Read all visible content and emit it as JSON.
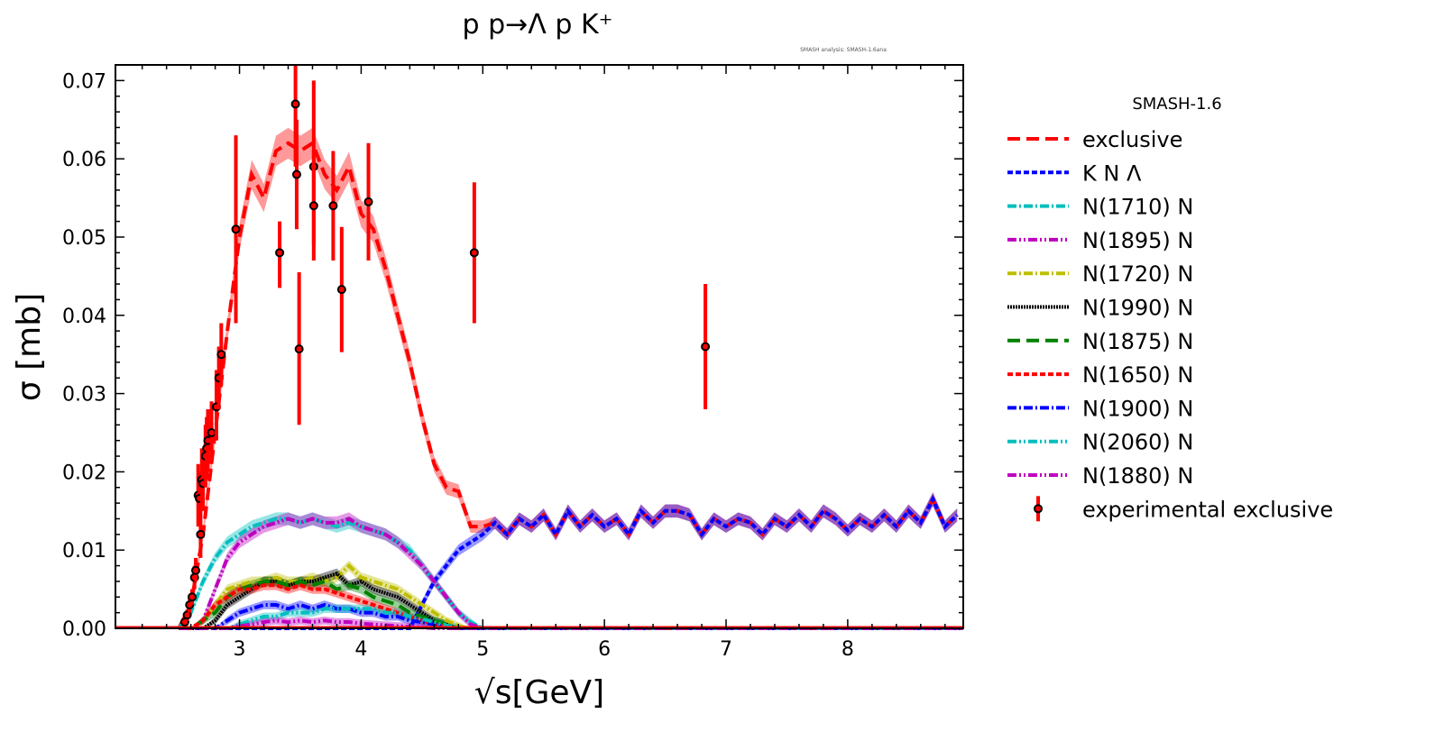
{
  "chart_data": {
    "type": "line",
    "title": "p p→Λ p K⁺",
    "annotation": "SMASH analysis: SMASH-1.6ana",
    "xlabel": "√s[GeV]",
    "ylabel": "σ [mb]",
    "xlim": [
      1.98,
      8.95
    ],
    "ylim": [
      0.0,
      0.072
    ],
    "xticks": [
      3,
      4,
      5,
      6,
      7,
      8
    ],
    "yticks": [
      "0.00",
      "0.01",
      "0.02",
      "0.03",
      "0.04",
      "0.05",
      "0.06",
      "0.07"
    ],
    "grid": false,
    "legend": {
      "title": "SMASH-1.6",
      "placement": "outside-right"
    },
    "band_halfwidth": 0.0012,
    "x_full": [
      2.5,
      2.6,
      2.7,
      2.8,
      2.9,
      3.0,
      3.1,
      3.2,
      3.3,
      3.4,
      3.5,
      3.6,
      3.7,
      3.8,
      3.9,
      4.0,
      4.1,
      4.2,
      4.3,
      4.4,
      4.5,
      4.6,
      4.7,
      4.8,
      4.9,
      5.0,
      5.1,
      5.2,
      5.3,
      5.4,
      5.5,
      5.6,
      5.7,
      5.8,
      5.9,
      6.0,
      6.1,
      6.2,
      6.3,
      6.4,
      6.5,
      6.6,
      6.7,
      6.8,
      6.9,
      7.0,
      7.1,
      7.2,
      7.3,
      7.4,
      7.5,
      7.6,
      7.7,
      7.8,
      7.9,
      8.0,
      8.1,
      8.2,
      8.3,
      8.4,
      8.5,
      8.6,
      8.7,
      8.8,
      8.9
    ],
    "x_res": [
      2.5,
      2.6,
      2.7,
      2.8,
      2.9,
      3.0,
      3.1,
      3.2,
      3.3,
      3.4,
      3.5,
      3.6,
      3.7,
      3.8,
      3.9,
      4.0,
      4.1,
      4.2,
      4.3,
      4.4,
      4.5,
      4.6,
      4.7,
      4.8,
      4.9,
      5.0
    ],
    "series": [
      {
        "name": "exclusive",
        "color": "#ff0000",
        "dash": "14,7",
        "grid": "full",
        "values": [
          0,
          0.003,
          0.012,
          0.025,
          0.038,
          0.05,
          0.058,
          0.055,
          0.061,
          0.062,
          0.061,
          0.062,
          0.058,
          0.056,
          0.059,
          0.053,
          0.051,
          0.046,
          0.04,
          0.034,
          0.027,
          0.021,
          0.018,
          0.0175,
          0.013,
          0.013,
          0.0135,
          0.012,
          0.014,
          0.013,
          0.0145,
          0.012,
          0.015,
          0.013,
          0.0145,
          0.013,
          0.014,
          0.012,
          0.015,
          0.0135,
          0.015,
          0.015,
          0.0145,
          0.012,
          0.014,
          0.013,
          0.014,
          0.0135,
          0.012,
          0.014,
          0.013,
          0.0145,
          0.013,
          0.015,
          0.014,
          0.0125,
          0.014,
          0.013,
          0.0145,
          0.013,
          0.015,
          0.0135,
          0.0165,
          0.013,
          0.0145
        ]
      },
      {
        "name": "K N Λ",
        "color": "#0000ff",
        "dash": "6,3",
        "grid": "full",
        "values": [
          0,
          0,
          0,
          0,
          0,
          0,
          0,
          0,
          0,
          0,
          0,
          0,
          0,
          0,
          0,
          0,
          0,
          0,
          0,
          0,
          0.003,
          0.006,
          0.008,
          0.01,
          0.011,
          0.012,
          0.0135,
          0.012,
          0.014,
          0.013,
          0.0145,
          0.012,
          0.015,
          0.013,
          0.0145,
          0.013,
          0.014,
          0.012,
          0.015,
          0.0135,
          0.015,
          0.015,
          0.0145,
          0.012,
          0.014,
          0.013,
          0.014,
          0.0135,
          0.012,
          0.014,
          0.013,
          0.0145,
          0.013,
          0.015,
          0.014,
          0.0125,
          0.014,
          0.013,
          0.0145,
          0.013,
          0.015,
          0.0135,
          0.0165,
          0.013,
          0.0145
        ]
      },
      {
        "name": "N(1710) N",
        "color": "#00bfbf",
        "dash": "10,3,2,3",
        "grid": "res",
        "values": [
          0,
          0.002,
          0.006,
          0.009,
          0.011,
          0.012,
          0.013,
          0.0135,
          0.014,
          0.014,
          0.0135,
          0.014,
          0.0135,
          0.013,
          0.0135,
          0.013,
          0.0125,
          0.012,
          0.011,
          0.01,
          0.008,
          0.006,
          0.004,
          0.002,
          0.0008,
          0
        ]
      },
      {
        "name": "N(1895) N",
        "color": "#bf00bf",
        "dash": "10,3,2,3,2,3",
        "grid": "res",
        "values": [
          0,
          0,
          0.001,
          0.005,
          0.009,
          0.011,
          0.012,
          0.013,
          0.0135,
          0.014,
          0.0135,
          0.014,
          0.0135,
          0.0135,
          0.014,
          0.013,
          0.0125,
          0.012,
          0.011,
          0.0095,
          0.008,
          0.006,
          0.004,
          0.002,
          0.0005,
          0
        ]
      },
      {
        "name": "N(1720) N",
        "color": "#bfbf00",
        "dash": "10,3,2,3",
        "grid": "res",
        "values": [
          0,
          0,
          0.001,
          0.003,
          0.005,
          0.0055,
          0.006,
          0.006,
          0.0065,
          0.006,
          0.006,
          0.0065,
          0.006,
          0.0065,
          0.008,
          0.0065,
          0.006,
          0.0055,
          0.005,
          0.004,
          0.003,
          0.002,
          0.001,
          0.0003,
          0,
          0
        ]
      },
      {
        "name": "N(1990) N",
        "color": "#000000",
        "dash": "2,1",
        "grid": "res",
        "values": [
          0,
          0,
          0,
          0.001,
          0.003,
          0.004,
          0.005,
          0.006,
          0.006,
          0.0055,
          0.006,
          0.006,
          0.0065,
          0.007,
          0.0055,
          0.006,
          0.005,
          0.0045,
          0.004,
          0.003,
          0.002,
          0.001,
          0.0005,
          0,
          0,
          0
        ]
      },
      {
        "name": "N(1875) N",
        "color": "#008000",
        "dash": "14,7",
        "grid": "res",
        "values": [
          0,
          0,
          0.001,
          0.002,
          0.004,
          0.005,
          0.0055,
          0.006,
          0.006,
          0.0055,
          0.006,
          0.0055,
          0.006,
          0.005,
          0.0055,
          0.005,
          0.004,
          0.0035,
          0.003,
          0.002,
          0.0015,
          0.001,
          0.0005,
          0,
          0,
          0
        ]
      },
      {
        "name": "N(1650) N",
        "color": "#ff0000",
        "dash": "6,3",
        "grid": "res",
        "values": [
          0,
          0,
          0.001,
          0.003,
          0.004,
          0.005,
          0.005,
          0.0055,
          0.0055,
          0.005,
          0.0055,
          0.005,
          0.005,
          0.0045,
          0.004,
          0.0035,
          0.003,
          0.0025,
          0.002,
          0.0015,
          0.001,
          0.0005,
          0.0002,
          0,
          0,
          0
        ]
      },
      {
        "name": "N(1900) N",
        "color": "#0000ff",
        "dash": "10,3,2,3",
        "grid": "res",
        "values": [
          0,
          0,
          0,
          0,
          0.001,
          0.002,
          0.0025,
          0.003,
          0.003,
          0.0025,
          0.003,
          0.0025,
          0.003,
          0.0025,
          0.0025,
          0.002,
          0.002,
          0.0015,
          0.0015,
          0.001,
          0.0008,
          0.0005,
          0.0002,
          0,
          0,
          0
        ]
      },
      {
        "name": "N(2060) N",
        "color": "#00bfbf",
        "dash": "10,3,2,3,2,3",
        "grid": "res",
        "values": [
          0,
          0,
          0,
          0,
          0,
          0.0005,
          0.001,
          0.0015,
          0.0015,
          0.002,
          0.002,
          0.002,
          0.0025,
          0.0025,
          0.0025,
          0.0025,
          0.0025,
          0.002,
          0.002,
          0.0015,
          0.0012,
          0.0008,
          0.0004,
          0.0001,
          0,
          0
        ]
      },
      {
        "name": "N(1880) N",
        "color": "#bf00bf",
        "dash": "10,3,2,3,2,3",
        "grid": "res",
        "values": [
          0,
          0,
          0,
          0,
          0,
          0.0003,
          0.0005,
          0.0008,
          0.001,
          0.0008,
          0.001,
          0.0008,
          0.001,
          0.0008,
          0.0008,
          0.0006,
          0.0005,
          0.0004,
          0.0003,
          0.0002,
          0.0001,
          0,
          0,
          0,
          0,
          0
        ]
      }
    ],
    "experimental": {
      "name": "experimental exclusive",
      "color": "#ff0000",
      "points": [
        {
          "x": 2.55,
          "y": 0.0008,
          "lo": 0.0002,
          "hi": 0.0014
        },
        {
          "x": 2.57,
          "y": 0.0017,
          "lo": 0.001,
          "hi": 0.0024
        },
        {
          "x": 2.59,
          "y": 0.003,
          "lo": 0.002,
          "hi": 0.004
        },
        {
          "x": 2.61,
          "y": 0.004,
          "lo": 0.003,
          "hi": 0.005
        },
        {
          "x": 2.63,
          "y": 0.0065,
          "lo": 0.005,
          "hi": 0.008
        },
        {
          "x": 2.64,
          "y": 0.0074,
          "lo": 0.006,
          "hi": 0.009
        },
        {
          "x": 2.66,
          "y": 0.017,
          "lo": 0.013,
          "hi": 0.021
        },
        {
          "x": 2.67,
          "y": 0.0166,
          "lo": 0.013,
          "hi": 0.02
        },
        {
          "x": 2.68,
          "y": 0.012,
          "lo": 0.009,
          "hi": 0.015
        },
        {
          "x": 2.69,
          "y": 0.019,
          "lo": 0.015,
          "hi": 0.023
        },
        {
          "x": 2.7,
          "y": 0.0185,
          "lo": 0.015,
          "hi": 0.022
        },
        {
          "x": 2.72,
          "y": 0.022,
          "lo": 0.018,
          "hi": 0.026
        },
        {
          "x": 2.73,
          "y": 0.023,
          "lo": 0.019,
          "hi": 0.027
        },
        {
          "x": 2.74,
          "y": 0.024,
          "lo": 0.02,
          "hi": 0.028
        },
        {
          "x": 2.77,
          "y": 0.025,
          "lo": 0.021,
          "hi": 0.029
        },
        {
          "x": 2.81,
          "y": 0.0283,
          "lo": 0.024,
          "hi": 0.033
        },
        {
          "x": 2.83,
          "y": 0.032,
          "lo": 0.028,
          "hi": 0.036
        },
        {
          "x": 2.85,
          "y": 0.035,
          "lo": 0.031,
          "hi": 0.039
        },
        {
          "x": 2.97,
          "y": 0.051,
          "lo": 0.039,
          "hi": 0.063
        },
        {
          "x": 3.33,
          "y": 0.048,
          "lo": 0.0435,
          "hi": 0.052
        },
        {
          "x": 3.46,
          "y": 0.067,
          "lo": 0.059,
          "hi": 0.072
        },
        {
          "x": 3.47,
          "y": 0.058,
          "lo": 0.051,
          "hi": 0.065
        },
        {
          "x": 3.49,
          "y": 0.0357,
          "lo": 0.026,
          "hi": 0.0455
        },
        {
          "x": 3.61,
          "y": 0.059,
          "lo": 0.049,
          "hi": 0.07
        },
        {
          "x": 3.61,
          "y": 0.054,
          "lo": 0.047,
          "hi": 0.061
        },
        {
          "x": 3.77,
          "y": 0.054,
          "lo": 0.047,
          "hi": 0.061
        },
        {
          "x": 3.84,
          "y": 0.0433,
          "lo": 0.0353,
          "hi": 0.0513
        },
        {
          "x": 4.06,
          "y": 0.0545,
          "lo": 0.047,
          "hi": 0.062
        },
        {
          "x": 4.93,
          "y": 0.048,
          "lo": 0.039,
          "hi": 0.057
        },
        {
          "x": 6.83,
          "y": 0.036,
          "lo": 0.028,
          "hi": 0.044
        }
      ]
    }
  }
}
